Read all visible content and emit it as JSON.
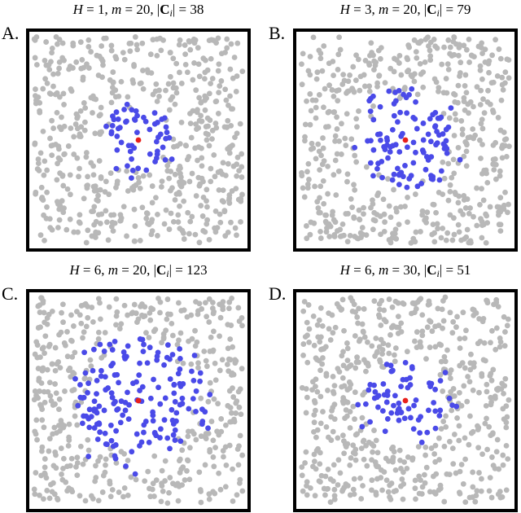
{
  "panels": [
    {
      "label": "A.",
      "title": [
        "H",
        " = 1, ",
        "m",
        " = 20, |",
        "C",
        "i",
        "| = 38"
      ]
    },
    {
      "label": "B.",
      "title": [
        "H",
        " = 3, ",
        "m",
        " = 20, |",
        "C",
        "i",
        "| = 79"
      ]
    },
    {
      "label": "C.",
      "title": [
        "H",
        " = 6, ",
        "m",
        " = 20, |",
        "C",
        "i",
        "| = 123"
      ]
    },
    {
      "label": "D.",
      "title": [
        "H",
        " = 6, ",
        "m",
        " = 30, |",
        "C",
        "i",
        "| = 51"
      ]
    }
  ]
}
